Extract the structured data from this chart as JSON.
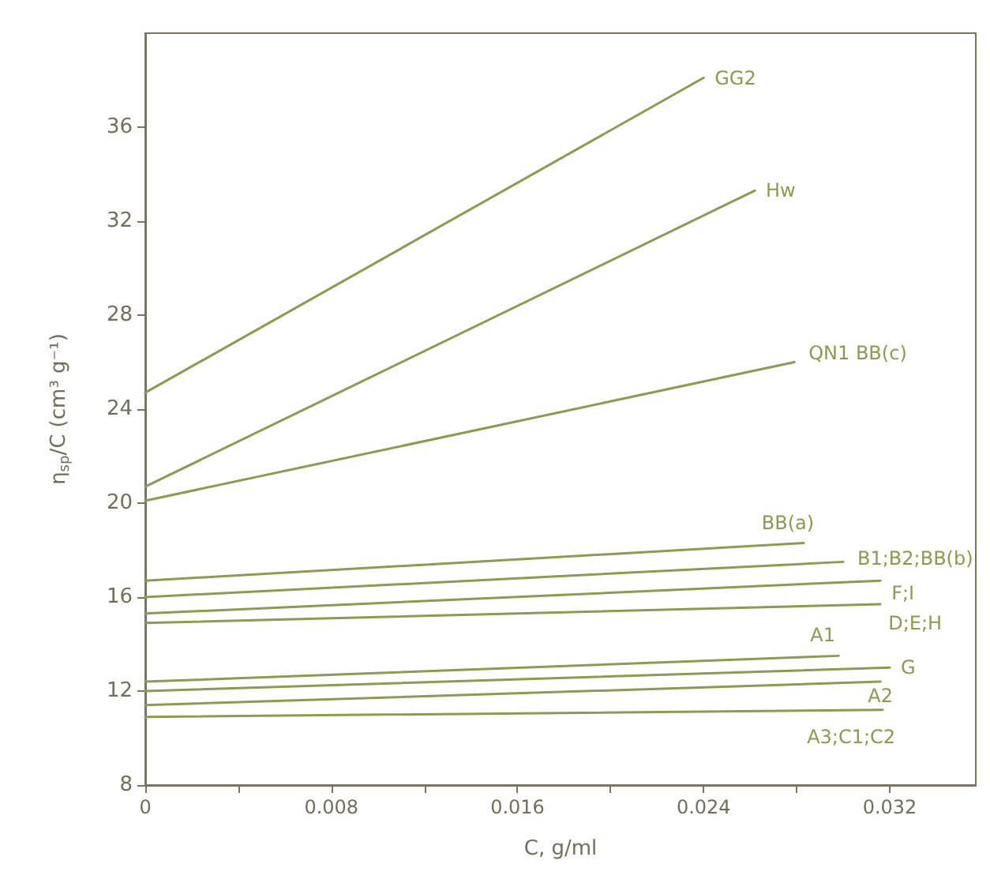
{
  "chart_data": {
    "type": "line",
    "xlabel": "C, g/ml",
    "ylabel": "η$_{sp}$/C (cm³ g⁻¹)",
    "xlim": [
      0,
      0.0357
    ],
    "ylim": [
      8,
      40
    ],
    "xticks": [
      0,
      {
        "value": 0.004,
        "label": null
      },
      0.008,
      {
        "value": 0.012,
        "label": null
      },
      0.016,
      {
        "value": 0.02,
        "label": null
      },
      0.024,
      {
        "value": 0.028,
        "label": null
      },
      0.032
    ],
    "yticks": [
      8,
      12,
      16,
      20,
      24,
      28,
      32,
      36
    ],
    "grid": false,
    "legend": false,
    "marker": "none",
    "line_style": "solid",
    "series": [
      {
        "name": "GG2",
        "color": "#8c9a52",
        "x": [
          0,
          0.024
        ],
        "values": [
          24.7,
          38.1
        ]
      },
      {
        "name": "Hw",
        "color": "#8c9a52",
        "x": [
          0,
          0.0262
        ],
        "values": [
          20.7,
          33.3
        ]
      },
      {
        "name": "QN1 BB(c)",
        "color": "#8c9a52",
        "x": [
          0,
          0.0279
        ],
        "values": [
          20.1,
          26.0
        ]
      },
      {
        "name": "BB(a)",
        "color": "#8c9a52",
        "x": [
          0,
          0.0283
        ],
        "values": [
          16.7,
          18.3
        ]
      },
      {
        "name": "B1;B2;BB(b)",
        "color": "#8c9a52",
        "x": [
          0,
          0.03
        ],
        "values": [
          16.0,
          17.5
        ]
      },
      {
        "name": "F;I",
        "color": "#8c9a52",
        "x": [
          0,
          0.0316
        ],
        "values": [
          15.3,
          16.7
        ]
      },
      {
        "name": "D;E;H",
        "color": "#8c9a52",
        "x": [
          0,
          0.0316
        ],
        "values": [
          14.9,
          15.7
        ]
      },
      {
        "name": "A1",
        "color": "#8c9a52",
        "x": [
          0,
          0.0298
        ],
        "values": [
          12.4,
          13.5
        ]
      },
      {
        "name": "G",
        "color": "#8c9a52",
        "x": [
          0,
          0.032
        ],
        "values": [
          12.0,
          13.0
        ]
      },
      {
        "name": "A2",
        "color": "#8c9a52",
        "x": [
          0,
          0.0316
        ],
        "values": [
          11.4,
          12.4
        ]
      },
      {
        "name": "A3;C1;C2",
        "color": "#8c9a52",
        "x": [
          0,
          0.0317
        ],
        "values": [
          10.9,
          11.2
        ]
      }
    ]
  }
}
